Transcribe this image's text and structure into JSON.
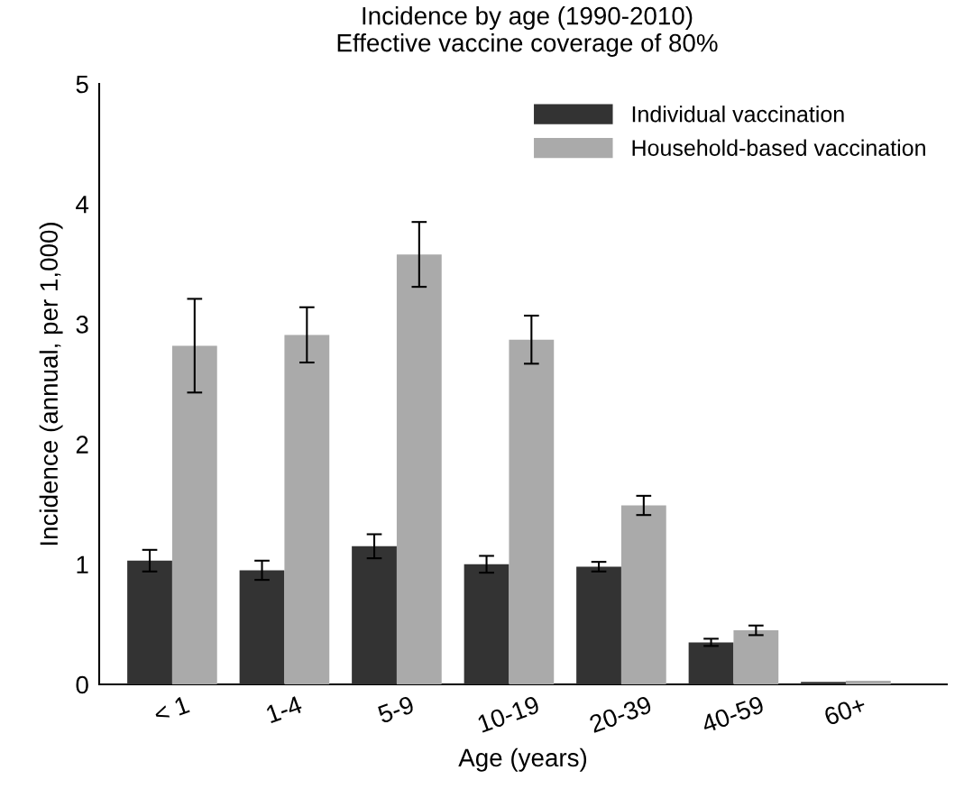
{
  "chart_data": {
    "type": "bar",
    "title": "Incidence by age (1990-2010)",
    "subtitle": "Effective vaccine coverage of 80%",
    "xlabel": "Age (years)",
    "ylabel": "Incidence (annual, per 1,000)",
    "categories": [
      "< 1",
      "1-4",
      "5-9",
      "10-19",
      "20-39",
      "40-59",
      "60+"
    ],
    "series": [
      {
        "name": "Individual vaccination",
        "color": "#333333",
        "values": [
          1.03,
          0.95,
          1.15,
          1.0,
          0.98,
          0.35,
          0.02
        ],
        "errors": [
          0.09,
          0.08,
          0.1,
          0.07,
          0.04,
          0.03,
          null
        ]
      },
      {
        "name": "Household-based vaccination",
        "color": "#aaaaaa",
        "values": [
          2.82,
          2.91,
          3.58,
          2.87,
          1.49,
          0.45,
          0.03
        ],
        "errors": [
          0.39,
          0.23,
          0.27,
          0.2,
          0.08,
          0.04,
          null
        ]
      }
    ],
    "ylim": [
      0,
      5
    ],
    "yticks": [
      0,
      1,
      2,
      3,
      4,
      5
    ],
    "grid": false,
    "legend": "top right"
  }
}
